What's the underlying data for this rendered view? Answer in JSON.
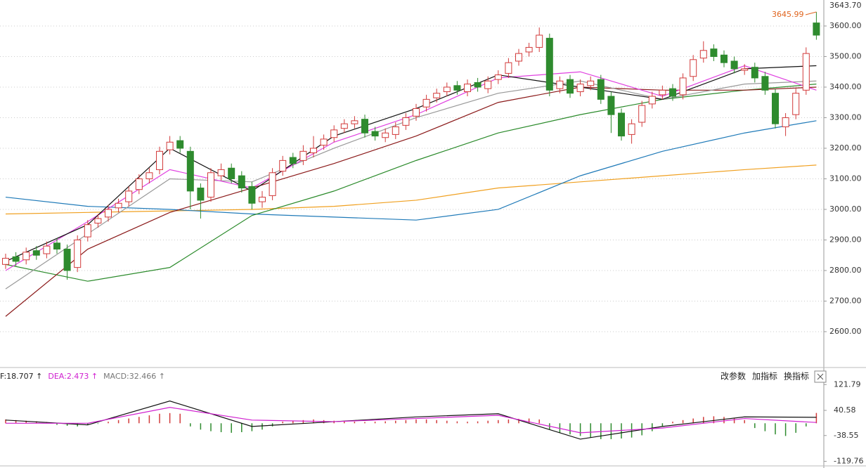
{
  "chart_data": {
    "type": "candlestick",
    "ylim": [
      2485,
      3685
    ],
    "yticks": [
      {
        "value": 2600,
        "label": "2600.00"
      },
      {
        "value": 2700,
        "label": "2700.00"
      },
      {
        "value": 2800,
        "label": "2800.00"
      },
      {
        "value": 2900,
        "label": "2900.00"
      },
      {
        "value": 3000,
        "label": "3000.00"
      },
      {
        "value": 3100,
        "label": "3100.00"
      },
      {
        "value": 3200,
        "label": "3200.00"
      },
      {
        "value": 3300,
        "label": "3300.00"
      },
      {
        "value": 3400,
        "label": "3400.00"
      },
      {
        "value": 3500,
        "label": "3500.00"
      },
      {
        "value": 3600,
        "label": "3600.00"
      }
    ],
    "top_label": "3643.70",
    "grid": true,
    "up_color": "#d23a3a",
    "down_color": "#2e8b2e",
    "annotation": {
      "text": "3645.99",
      "color": "#e0641e"
    },
    "open": [
      2820,
      2845,
      2835,
      2865,
      2855,
      2890,
      2870,
      2810,
      2910,
      2955,
      2975,
      3005,
      3025,
      3065,
      3100,
      3130,
      3195,
      3225,
      3190,
      3070,
      3040,
      3110,
      3135,
      3110,
      3075,
      3025,
      3045,
      3125,
      3170,
      3160,
      3185,
      3210,
      3235,
      3265,
      3280,
      3295,
      3255,
      3235,
      3245,
      3275,
      3305,
      3335,
      3365,
      3385,
      3405,
      3385,
      3415,
      3395,
      3425,
      3445,
      3485,
      3515,
      3530,
      3560,
      3395,
      3425,
      3385,
      3405,
      3425,
      3370,
      3315,
      3245,
      3285,
      3345,
      3375,
      3395,
      3375,
      3435,
      3495,
      3525,
      3505,
      3485,
      3455,
      3465,
      3435,
      3380,
      3270,
      3310,
      3390,
      3610
    ],
    "high": [
      2855,
      2860,
      2875,
      2880,
      2895,
      2905,
      2885,
      2915,
      2965,
      2985,
      3015,
      3035,
      3075,
      3115,
      3135,
      3205,
      3240,
      3240,
      3205,
      3085,
      3135,
      3150,
      3150,
      3125,
      3090,
      3060,
      3135,
      3175,
      3185,
      3210,
      3240,
      3245,
      3275,
      3295,
      3305,
      3310,
      3270,
      3265,
      3285,
      3315,
      3345,
      3375,
      3395,
      3415,
      3420,
      3425,
      3430,
      3435,
      3455,
      3495,
      3525,
      3545,
      3595,
      3575,
      3435,
      3440,
      3425,
      3435,
      3440,
      3385,
      3330,
      3295,
      3355,
      3385,
      3405,
      3410,
      3445,
      3505,
      3550,
      3540,
      3520,
      3500,
      3475,
      3480,
      3450,
      3395,
      3315,
      3395,
      3530,
      3645.99
    ],
    "low": [
      2805,
      2815,
      2820,
      2835,
      2840,
      2855,
      2770,
      2795,
      2895,
      2940,
      2960,
      2990,
      3010,
      3050,
      3085,
      3115,
      3180,
      3185,
      3000,
      2970,
      3025,
      3095,
      3085,
      3055,
      3000,
      3005,
      3030,
      3110,
      3135,
      3145,
      3170,
      3195,
      3220,
      3250,
      3265,
      3235,
      3225,
      3220,
      3230,
      3260,
      3290,
      3320,
      3350,
      3370,
      3375,
      3370,
      3385,
      3380,
      3410,
      3430,
      3470,
      3500,
      3515,
      3370,
      3380,
      3365,
      3370,
      3390,
      3345,
      3250,
      3225,
      3215,
      3270,
      3330,
      3360,
      3355,
      3360,
      3420,
      3480,
      3485,
      3465,
      3445,
      3440,
      3415,
      3375,
      3265,
      3240,
      3295,
      3375,
      3555
    ],
    "close": [
      2840,
      2830,
      2860,
      2850,
      2880,
      2870,
      2800,
      2900,
      2950,
      2970,
      3000,
      3020,
      3060,
      3100,
      3120,
      3190,
      3220,
      3200,
      3060,
      3030,
      3120,
      3130,
      3100,
      3070,
      3020,
      3040,
      3120,
      3160,
      3150,
      3190,
      3200,
      3230,
      3260,
      3280,
      3290,
      3250,
      3240,
      3250,
      3270,
      3300,
      3330,
      3360,
      3380,
      3400,
      3390,
      3410,
      3400,
      3420,
      3440,
      3480,
      3510,
      3530,
      3570,
      3390,
      3420,
      3380,
      3410,
      3420,
      3360,
      3310,
      3240,
      3280,
      3340,
      3370,
      3390,
      3370,
      3430,
      3490,
      3520,
      3500,
      3480,
      3460,
      3460,
      3430,
      3390,
      3280,
      3300,
      3380,
      3510,
      3570
    ],
    "ma_x": [
      0,
      8,
      16,
      24,
      32,
      40,
      48,
      56,
      64,
      72,
      79
    ],
    "ma_lines": [
      {
        "color": "#f0a020",
        "values": [
          2985,
          2990,
          2995,
          3000,
          3010,
          3030,
          3070,
          3090,
          3110,
          3130,
          3145
        ]
      },
      {
        "color": "#1f7ab8",
        "values": [
          3040,
          3010,
          3000,
          2985,
          2975,
          2965,
          3000,
          3110,
          3190,
          3250,
          3290
        ]
      },
      {
        "color": "#2a8a2a",
        "values": [
          2820,
          2765,
          2810,
          2980,
          3060,
          3160,
          3250,
          3310,
          3360,
          3390,
          3410
        ]
      },
      {
        "color": "#8b1a1a",
        "values": [
          2650,
          2870,
          2990,
          3070,
          3150,
          3240,
          3350,
          3400,
          3390,
          3390,
          3400
        ]
      },
      {
        "color": "#999999",
        "values": [
          2740,
          2920,
          3100,
          3090,
          3200,
          3300,
          3380,
          3420,
          3360,
          3410,
          3420
        ]
      },
      {
        "color": "#e040e0",
        "values": [
          2800,
          2960,
          3130,
          3070,
          3220,
          3310,
          3430,
          3450,
          3370,
          3470,
          3390
        ]
      },
      {
        "color": "#111111",
        "values": [
          2830,
          2950,
          3200,
          3060,
          3240,
          3330,
          3440,
          3400,
          3360,
          3460,
          3470
        ]
      }
    ],
    "macd": {
      "ylim": [
        -132,
        160
      ],
      "yticks": [
        121.79,
        40.58,
        -38.55,
        -119.76
      ],
      "legend": [
        {
          "text": "F:18.707 ↑",
          "color": "#222222"
        },
        {
          "text": "DEA:2.473 ↑",
          "color": "#d020d0"
        },
        {
          "text": "MACD:32.466 ↑",
          "color": "#777777"
        }
      ],
      "buttons": [
        "改参数",
        "加指标",
        "换指标"
      ],
      "bars": [
        12,
        10,
        8,
        6,
        4,
        -5,
        -8,
        -10,
        -6,
        -2,
        5,
        10,
        15,
        20,
        25,
        30,
        32,
        30,
        -10,
        -20,
        -25,
        -28,
        -30,
        -28,
        -25,
        -20,
        -10,
        5,
        8,
        10,
        12,
        10,
        8,
        6,
        5,
        4,
        5,
        6,
        8,
        10,
        12,
        12,
        10,
        8,
        6,
        5,
        6,
        8,
        10,
        12,
        14,
        15,
        12,
        -20,
        -30,
        -35,
        -40,
        -45,
        -50,
        -50,
        -48,
        -45,
        -38,
        -25,
        -10,
        5,
        10,
        15,
        20,
        22,
        20,
        15,
        10,
        -15,
        -25,
        -35,
        -40,
        -30,
        -10,
        32.466
      ],
      "dif": {
        "color": "#111111",
        "values": [
          10,
          -5,
          70,
          -10,
          5,
          20,
          30,
          -50,
          -10,
          20,
          18.707
        ]
      },
      "dea": {
        "color": "#d020d0",
        "values": [
          0,
          0,
          50,
          10,
          5,
          15,
          25,
          -30,
          -15,
          15,
          2.473
        ]
      }
    }
  }
}
